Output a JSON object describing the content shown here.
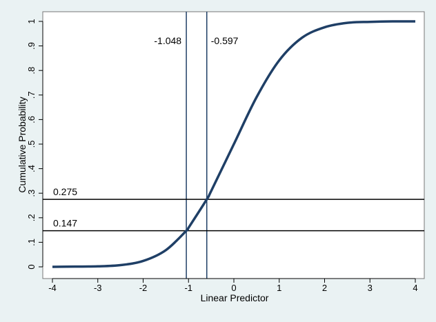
{
  "chart_data": {
    "type": "line",
    "title": "",
    "xlabel": "Linear Predictor",
    "ylabel": "Cumulative Probability",
    "xlim": [
      -4,
      4
    ],
    "ylim": [
      0,
      1
    ],
    "x_ticks": [
      -4,
      -3,
      -2,
      -1,
      0,
      1,
      2,
      3,
      4
    ],
    "x_tick_labels": [
      "-4",
      "-3",
      "-2",
      "-1",
      "0",
      "1",
      "2",
      "3",
      "4"
    ],
    "y_ticks": [
      0,
      0.1,
      0.2,
      0.3,
      0.4,
      0.5,
      0.6,
      0.7,
      0.8,
      0.9,
      1
    ],
    "y_tick_labels": [
      "0",
      ".1",
      ".2",
      ".3",
      ".4",
      ".5",
      ".6",
      ".7",
      ".8",
      ".9",
      "1"
    ],
    "grid": false,
    "series": [
      {
        "x": [
          -4,
          -3.5,
          -3,
          -2.5,
          -2,
          -1.5,
          -1.048,
          -1,
          -0.597,
          -0.5,
          0,
          0.5,
          1,
          1.5,
          2,
          2.5,
          3,
          3.5,
          4
        ],
        "y": [
          0,
          0.001,
          0.002,
          0.007,
          0.024,
          0.068,
          0.147,
          0.159,
          0.275,
          0.309,
          0.5,
          0.691,
          0.841,
          0.933,
          0.976,
          0.994,
          0.998,
          1.0,
          1.0
        ],
        "color": "#1f3f66"
      }
    ],
    "vertical_lines": [
      {
        "x": -1.048,
        "label": "-1.048"
      },
      {
        "x": -0.597,
        "label": "-0.597"
      }
    ],
    "horizontal_lines": [
      {
        "y": 0.275,
        "label": "0.275"
      },
      {
        "y": 0.147,
        "label": "0.147"
      }
    ]
  }
}
